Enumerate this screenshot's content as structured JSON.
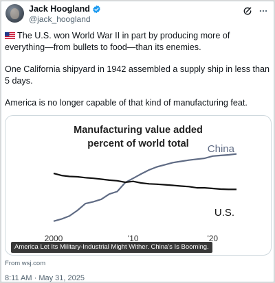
{
  "author": {
    "display_name": "Jack Hoogland",
    "handle": "@jack_hoogland",
    "verified": true
  },
  "icons": {
    "verified": "verified-badge-icon",
    "grok": "grok-icon",
    "more": "more-options-icon",
    "flag": "us-flag-emoji"
  },
  "tweet": {
    "paragraph_1": "The U.S. won World War II in part by producing more of everything—from bullets to food—than its enemies.",
    "paragraph_2": "One California shipyard in 1942 assembled a supply ship in less than 5 days.",
    "paragraph_3": "America is no longer capable of that kind of manufacturing feat."
  },
  "media": {
    "caption": "America Let Its Military-Industrial Might Wither. China's Is Booming."
  },
  "link_source": "From wsj.com",
  "timestamp": "8:11 AM · May 31, 2025",
  "colors": {
    "accent": "#1d9bf0",
    "china_line": "#5f6b84",
    "us_line": "#111111",
    "muted_text": "#536471"
  },
  "chart_data": {
    "type": "line",
    "title": "Manufacturing value added",
    "subtitle": "percent of world total",
    "x_tick_labels": [
      "2000",
      "'10",
      "'20"
    ],
    "x": [
      2000,
      2001,
      2002,
      2003,
      2004,
      2005,
      2006,
      2007,
      2008,
      2009,
      2010,
      2011,
      2012,
      2013,
      2014,
      2015,
      2016,
      2017,
      2018,
      2019,
      2020,
      2021,
      2022,
      2023
    ],
    "xlim": [
      2000,
      2023
    ],
    "ylim": [
      9,
      33
    ],
    "grid": false,
    "series": [
      {
        "name": "China",
        "values": [
          9.5,
          10.2,
          11.2,
          13.0,
          15.2,
          15.8,
          16.6,
          18.3,
          19.1,
          22.0,
          23.4,
          24.8,
          26.1,
          27.1,
          27.8,
          28.5,
          28.9,
          29.3,
          29.6,
          29.9,
          30.6,
          30.8,
          31.0,
          31.3
        ]
      },
      {
        "name": "U.S.",
        "values": [
          25.0,
          24.3,
          24.0,
          23.9,
          23.6,
          23.4,
          23.1,
          22.8,
          22.6,
          22.1,
          22.4,
          21.9,
          21.6,
          21.5,
          21.3,
          21.1,
          20.9,
          20.7,
          20.3,
          20.3,
          20.1,
          19.9,
          19.8,
          19.8
        ]
      }
    ]
  }
}
